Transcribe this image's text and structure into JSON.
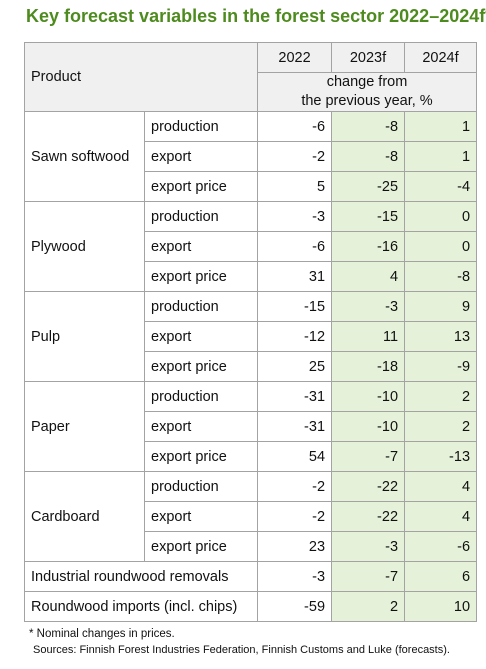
{
  "title": "Key forecast variables in the forest sector 2022–2024f*",
  "header": {
    "product": "Product",
    "years": [
      "2022",
      "2023f",
      "2024f"
    ],
    "subheader_line1": "change from",
    "subheader_line2": "the previous year, %"
  },
  "groups": [
    {
      "product": "Sawn softwood",
      "rows": [
        {
          "var": "production",
          "v2022": "-6",
          "v2023": "-8",
          "v2024": "1"
        },
        {
          "var": "export",
          "v2022": "-2",
          "v2023": "-8",
          "v2024": "1"
        },
        {
          "var": "export price",
          "v2022": "5",
          "v2023": "-25",
          "v2024": "-4"
        }
      ]
    },
    {
      "product": "Plywood",
      "rows": [
        {
          "var": "production",
          "v2022": "-3",
          "v2023": "-15",
          "v2024": "0"
        },
        {
          "var": "export",
          "v2022": "-6",
          "v2023": "-16",
          "v2024": "0"
        },
        {
          "var": "export price",
          "v2022": "31",
          "v2023": "4",
          "v2024": "-8"
        }
      ]
    },
    {
      "product": "Pulp",
      "rows": [
        {
          "var": "production",
          "v2022": "-15",
          "v2023": "-3",
          "v2024": "9"
        },
        {
          "var": "export",
          "v2022": "-12",
          "v2023": "11",
          "v2024": "13"
        },
        {
          "var": "export price",
          "v2022": "25",
          "v2023": "-18",
          "v2024": "-9"
        }
      ]
    },
    {
      "product": "Paper",
      "rows": [
        {
          "var": "production",
          "v2022": "-31",
          "v2023": "-10",
          "v2024": "2"
        },
        {
          "var": "export",
          "v2022": "-31",
          "v2023": "-10",
          "v2024": "2"
        },
        {
          "var": "export price",
          "v2022": "54",
          "v2023": "-7",
          "v2024": "-13"
        }
      ]
    },
    {
      "product": "Cardboard",
      "rows": [
        {
          "var": "production",
          "v2022": "-2",
          "v2023": "-22",
          "v2024": "4"
        },
        {
          "var": "export",
          "v2022": "-2",
          "v2023": "-22",
          "v2024": "4"
        },
        {
          "var": "export price",
          "v2022": "23",
          "v2023": "-3",
          "v2024": "-6"
        }
      ]
    }
  ],
  "single_rows": [
    {
      "label": "Industrial roundwood removals",
      "v2022": "-3",
      "v2023": "-7",
      "v2024": "6"
    },
    {
      "label": "Roundwood imports (incl. chips)",
      "v2022": "-59",
      "v2023": "2",
      "v2024": "10"
    }
  ],
  "footnote": "* Nominal changes in prices.",
  "sources": "Sources: Finnish Forest Industries Federation, Finnish Customs and Luke (forecasts).",
  "colors": {
    "title": "#4e8b1e",
    "forecast_fill": "#e5f1d9",
    "header_fill": "#f0f0f0",
    "border": "#a3a3a3"
  }
}
